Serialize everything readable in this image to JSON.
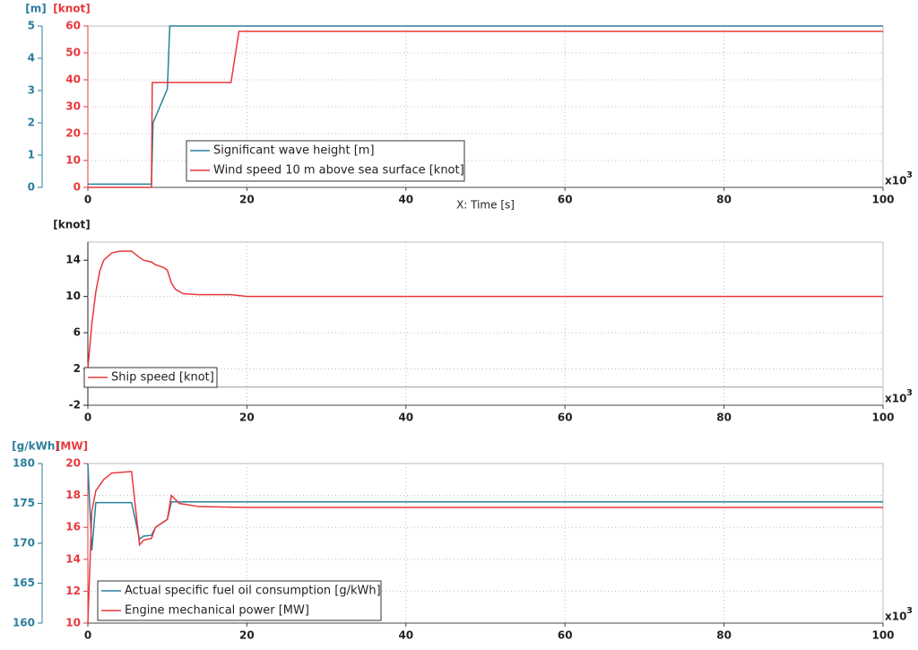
{
  "chart_data": [
    {
      "type": "line",
      "x_label": "X: Time [s]",
      "x_multiplier": "x10",
      "x_exponent": "3",
      "y_label": "[m]",
      "y2_label": "[knot]",
      "xlim": [
        0,
        100
      ],
      "xticks": [
        0,
        20,
        40,
        60,
        80,
        100
      ],
      "ylim": [
        0,
        5
      ],
      "yticks": [
        0,
        1,
        2,
        3,
        4,
        5
      ],
      "y2lim": [
        0,
        60
      ],
      "y2ticks": [
        0,
        10,
        20,
        30,
        40,
        50,
        60
      ],
      "grid": true,
      "series": [
        {
          "name": "Significant wave height [m]",
          "color": "#2b7f9e",
          "x": [
            0,
            8,
            8.2,
            10,
            10.3,
            100
          ],
          "values": [
            0.1,
            0.1,
            2,
            3.05,
            5,
            5
          ]
        },
        {
          "name": "Wind speed 10 m above sea surface [knot]",
          "color": "#e8383b",
          "axis": "y2",
          "x": [
            0,
            8,
            8.1,
            18,
            19,
            100
          ],
          "values": [
            0,
            0,
            39,
            39,
            58,
            58
          ]
        }
      ]
    },
    {
      "type": "line",
      "x_multiplier": "x10",
      "x_exponent": "3",
      "y_label": "[knot]",
      "xlim": [
        0,
        100
      ],
      "xticks": [
        0,
        20,
        40,
        60,
        80,
        100
      ],
      "ylim": [
        -2,
        16
      ],
      "yticks": [
        -2,
        2,
        6,
        10,
        14
      ],
      "grid": true,
      "series": [
        {
          "name": "Ship speed [knot]",
          "color": "#e8383b",
          "x": [
            0,
            0.5,
            1,
            1.5,
            2,
            3,
            4,
            5.5,
            6.5,
            7,
            8,
            8.5,
            9.5,
            10,
            10.5,
            11,
            12,
            14,
            18,
            20,
            100
          ],
          "values": [
            2,
            7,
            10.5,
            12.8,
            14,
            14.8,
            15,
            15,
            14.3,
            14,
            13.8,
            13.5,
            13.2,
            12.9,
            11.5,
            10.8,
            10.3,
            10.2,
            10.2,
            10,
            10
          ]
        }
      ]
    },
    {
      "type": "line",
      "x_multiplier": "x10",
      "x_exponent": "3",
      "y_label": "[g/kWh]",
      "y2_label": "[MW]",
      "xlim": [
        0,
        100
      ],
      "xticks": [
        0,
        20,
        40,
        60,
        80,
        100
      ],
      "ylim": [
        160,
        180
      ],
      "yticks": [
        160,
        165,
        170,
        175,
        180
      ],
      "y2lim": [
        10,
        20
      ],
      "y2ticks": [
        10,
        12,
        14,
        16,
        18,
        20
      ],
      "grid": true,
      "series": [
        {
          "name": "Actual specific fuel oil consumption [g/kWh]",
          "color": "#2b7f9e",
          "x": [
            0,
            0.5,
            1,
            5.5,
            6.5,
            7,
            8,
            8.5,
            10,
            10.5,
            100
          ],
          "values": [
            180,
            169.1,
            175.1,
            175.1,
            170.5,
            170.9,
            171,
            172,
            173,
            175.2,
            175.2
          ]
        },
        {
          "name": "Engine mechanical power [MW]",
          "color": "#e8383b",
          "axis": "y2",
          "x": [
            0,
            0.5,
            1,
            2,
            3,
            5.5,
            6.5,
            7,
            8,
            8.5,
            10,
            10.5,
            11.5,
            14,
            20,
            100
          ],
          "values": [
            10,
            17,
            18.3,
            19,
            19.4,
            19.5,
            14.9,
            15.2,
            15.3,
            16,
            16.5,
            18,
            17.5,
            17.3,
            17.25,
            17.25
          ]
        }
      ]
    }
  ]
}
